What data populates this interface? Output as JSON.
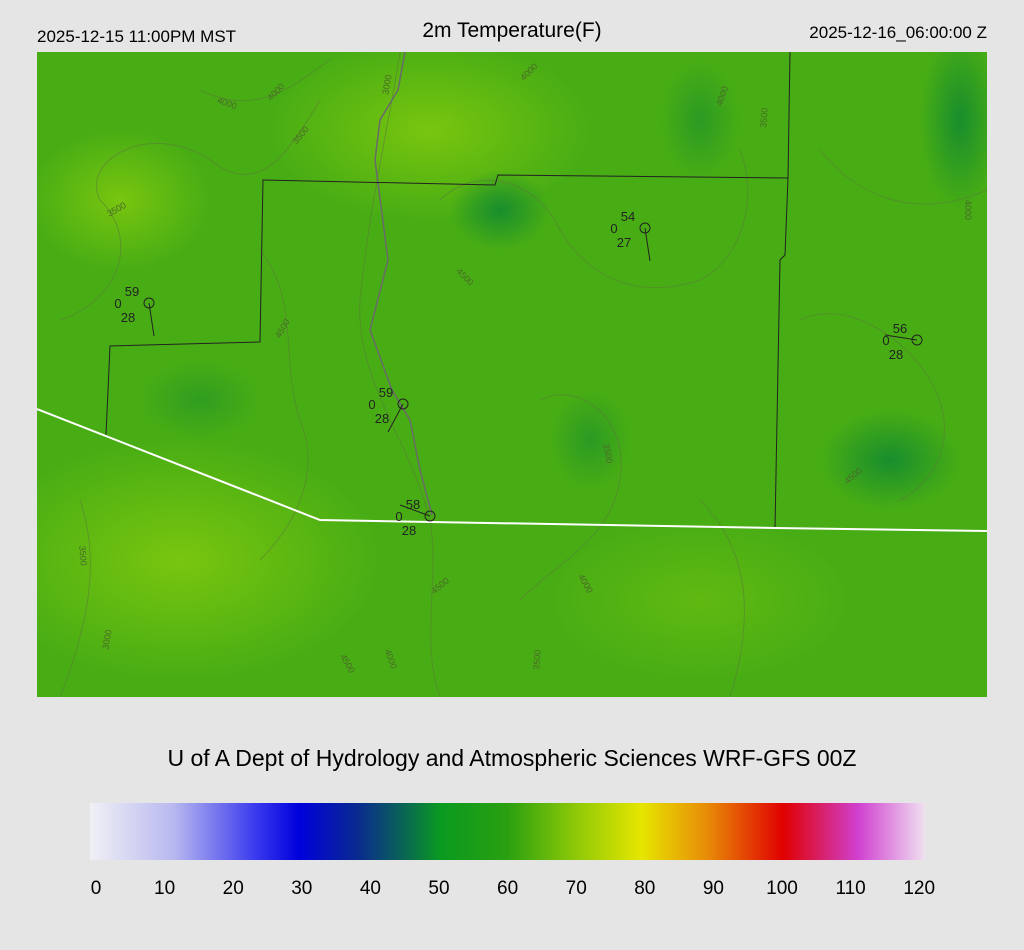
{
  "header": {
    "left": "2025-12-15 11:00PM MST",
    "title": "2m Temperature(F)",
    "right": "2025-12-16_06:00:00 Z"
  },
  "stations": [
    {
      "temp": "59",
      "wind": "0",
      "dewpoint": "28"
    },
    {
      "temp": "54",
      "wind": "0",
      "dewpoint": "27"
    },
    {
      "temp": "56",
      "wind": "0",
      "dewpoint": "28"
    },
    {
      "temp": "59",
      "wind": "0",
      "dewpoint": "28"
    },
    {
      "temp": "58",
      "wind": "0",
      "dewpoint": "28"
    }
  ],
  "contour_labels": [
    "4000",
    "4000",
    "3000",
    "3500",
    "3500",
    "4000",
    "4500",
    "4500",
    "4000",
    "3500",
    "3000",
    "3500",
    "4500",
    "4000",
    "3500",
    "4500",
    "4000",
    "3500",
    "4500",
    "4000"
  ],
  "credit": "U of A Dept of Hydrology and Atmospheric Sciences WRF-GFS 00Z",
  "colorbar": {
    "ticks": [
      "0",
      "10",
      "20",
      "30",
      "40",
      "50",
      "60",
      "70",
      "80",
      "90",
      "100",
      "110",
      "120"
    ]
  }
}
